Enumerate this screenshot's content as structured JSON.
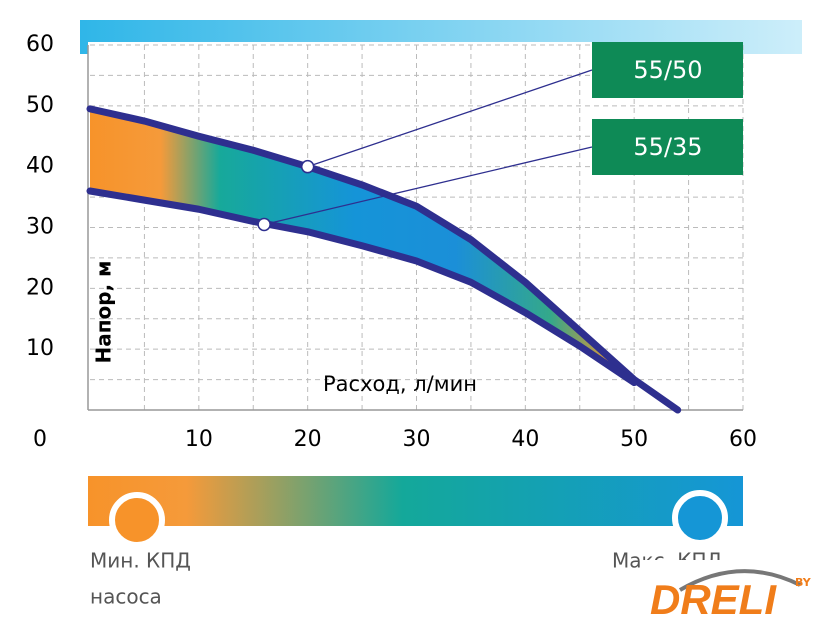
{
  "chart_data": {
    "type": "line",
    "x_label": "Расход, л/мин",
    "y_label": "Напор, м",
    "x": [
      0,
      5,
      10,
      15,
      20,
      25,
      30,
      35,
      40,
      45,
      50,
      54
    ],
    "series": [
      {
        "name": "55/50",
        "color": "#2e2f8f",
        "values": [
          49.5,
          47.5,
          45,
          42.7,
          40,
          37,
          33.5,
          28,
          21,
          13,
          5,
          0
        ],
        "marker": {
          "x": 20,
          "y": 40
        }
      },
      {
        "name": "55/35",
        "color": "#2e2f8f",
        "values": [
          36,
          34.5,
          33,
          31,
          29.3,
          27,
          24.5,
          21,
          16,
          10.5,
          4.5,
          null
        ],
        "marker": {
          "x": 16,
          "y": 30.5
        }
      }
    ],
    "xlim": [
      0,
      60
    ],
    "ylim": [
      0,
      60
    ],
    "xticks": [
      10,
      20,
      30,
      40,
      50,
      60
    ],
    "yticks": [
      0,
      10,
      20,
      30,
      40,
      50,
      60
    ],
    "grid": true,
    "legend": {
      "min": "Мин. КПД",
      "min_sub": "насоса",
      "max": "Макс. КПД"
    },
    "logo": {
      "text": "DRELI",
      "sub": "BY"
    }
  }
}
